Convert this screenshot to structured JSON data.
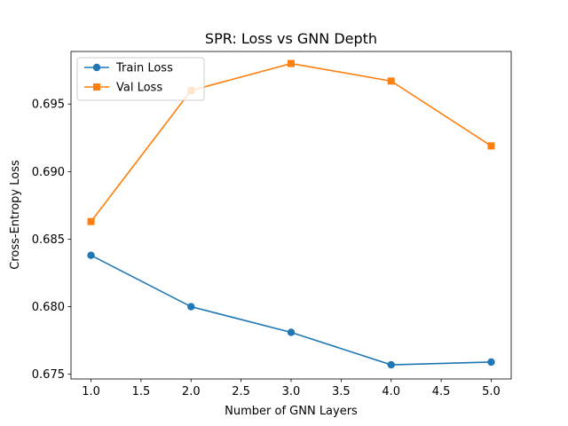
{
  "chart_data": {
    "type": "line",
    "title": "SPR: Loss vs GNN Depth",
    "xlabel": "Number of GNN Layers",
    "ylabel": "Cross-Entropy Loss",
    "x": [
      1,
      2,
      3,
      4,
      5
    ],
    "xlim": [
      0.8,
      5.2
    ],
    "ylim": [
      0.67465,
      0.69889
    ],
    "xticks": [
      "1.0",
      "1.5",
      "2.0",
      "2.5",
      "3.0",
      "3.5",
      "4.0",
      "4.5",
      "5.0"
    ],
    "yticks": [
      "0.675",
      "0.680",
      "0.685",
      "0.690",
      "0.695"
    ],
    "legend_position": "top-left",
    "grid": false,
    "series": [
      {
        "name": "Train Loss",
        "values": [
          0.6838,
          0.68,
          0.6781,
          0.6757,
          0.6759
        ],
        "color": "#1f77b4",
        "marker": "circle"
      },
      {
        "name": "Val Loss",
        "values": [
          0.6863,
          0.696,
          0.698,
          0.6967,
          0.6919
        ],
        "color": "#ff7f0e",
        "marker": "square"
      }
    ]
  }
}
